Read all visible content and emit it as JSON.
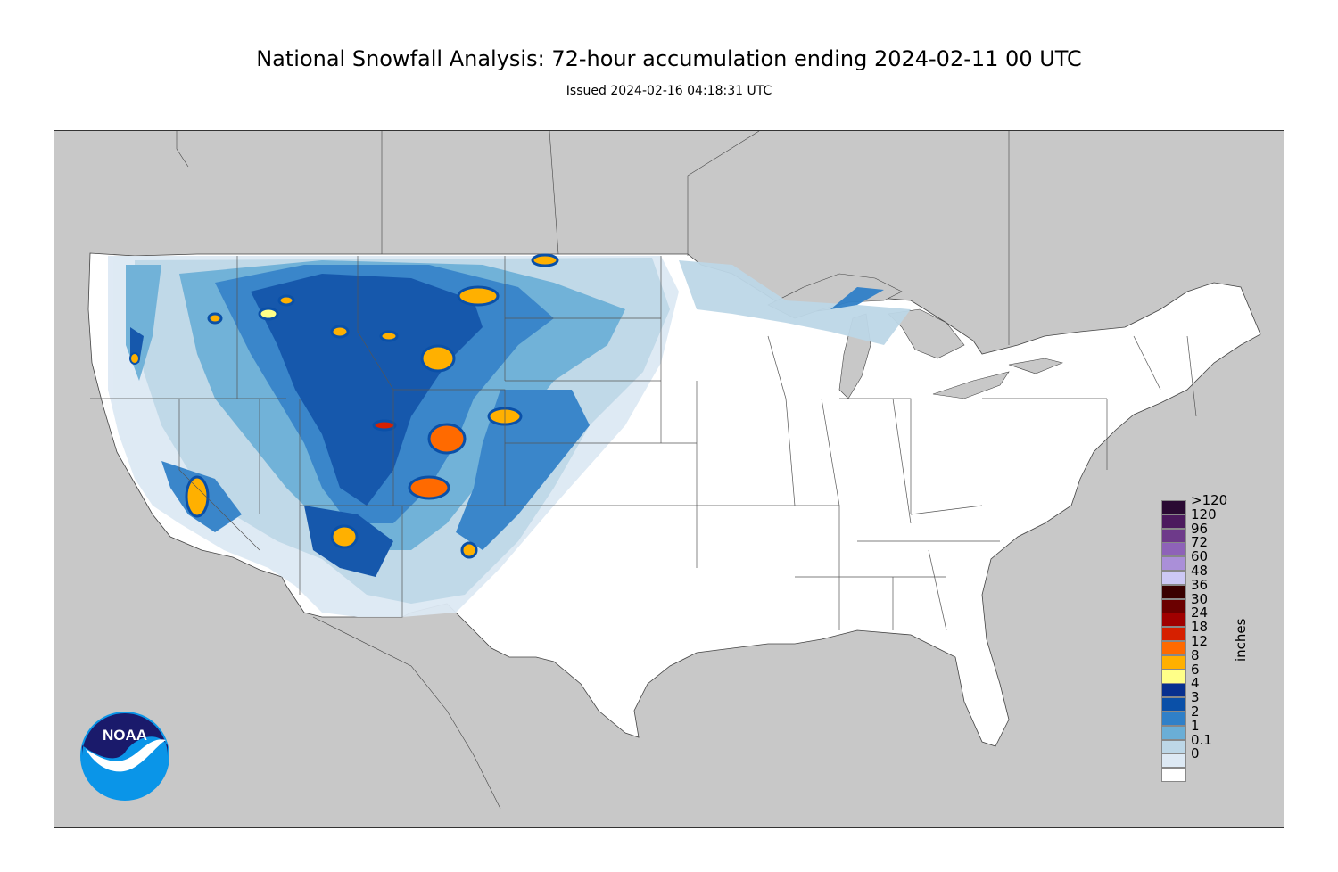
{
  "header": {
    "title": "National Snowfall Analysis: 72-hour accumulation ending 2024-02-11 00 UTC",
    "subtitle": "Issued 2024-02-16 04:18:31 UTC"
  },
  "legend": {
    "units": "inches",
    "entries": [
      {
        "label": ">120",
        "color": "#2a0a33"
      },
      {
        "label": "120",
        "color": "#4c1a5e"
      },
      {
        "label": "96",
        "color": "#6e3a8a"
      },
      {
        "label": "72",
        "color": "#8e62b8"
      },
      {
        "label": "60",
        "color": "#aa8fd8"
      },
      {
        "label": "48",
        "color": "#cdc8f5"
      },
      {
        "label": "36",
        "color": "#3a0000"
      },
      {
        "label": "30",
        "color": "#6b0000"
      },
      {
        "label": "24",
        "color": "#a00000"
      },
      {
        "label": "18",
        "color": "#d62000"
      },
      {
        "label": "12",
        "color": "#ff6a00"
      },
      {
        "label": "8",
        "color": "#ffb000"
      },
      {
        "label": "6",
        "color": "#ffff88"
      },
      {
        "label": "4",
        "color": "#08308f"
      },
      {
        "label": "3",
        "color": "#0a50a8"
      },
      {
        "label": "2",
        "color": "#3080c8"
      },
      {
        "label": "1",
        "color": "#6aaed6"
      },
      {
        "label": "0.1",
        "color": "#bdd7e7"
      },
      {
        "label": "0",
        "color": "#dde9f4"
      },
      {
        "label": "",
        "color": "#ffffff"
      }
    ]
  },
  "logo": {
    "text": "NOAA"
  },
  "colors": {
    "land_outside": "#c8c8c8",
    "conus": "#ffffff",
    "boundary": "#555555"
  }
}
